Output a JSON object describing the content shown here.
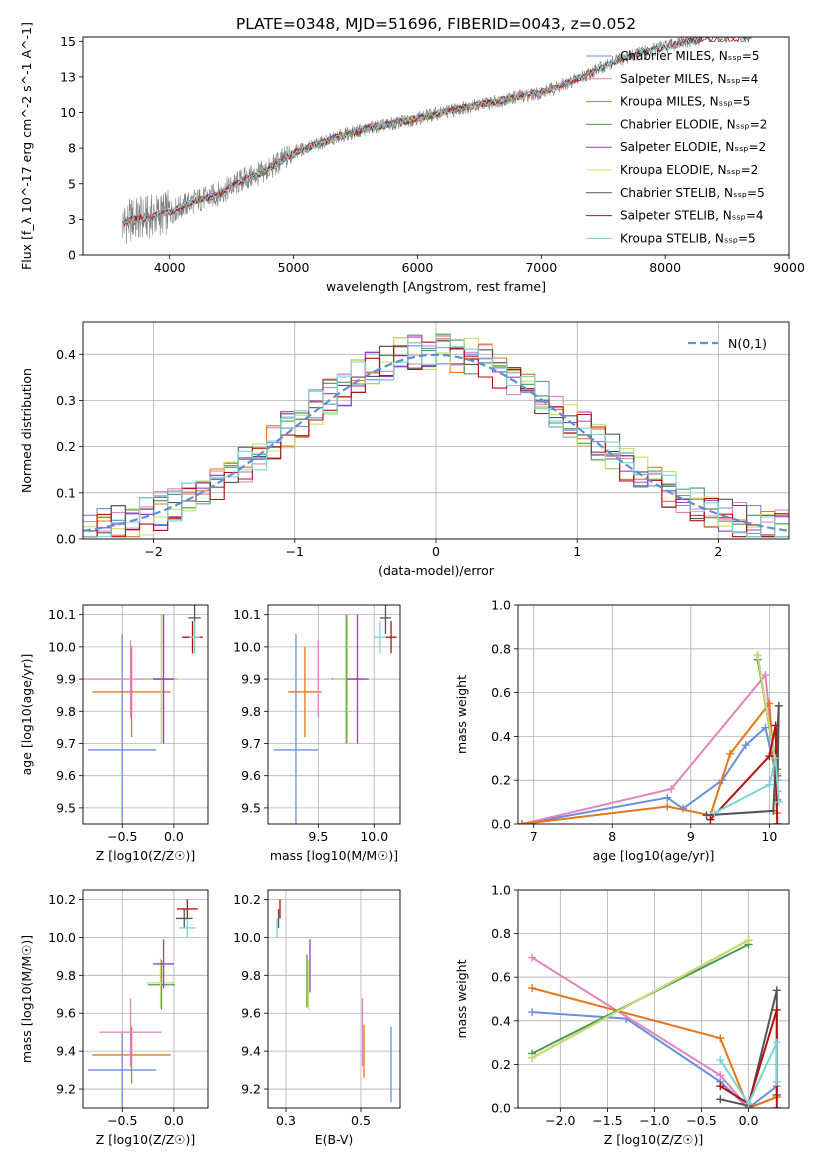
{
  "title": "PLATE=0348, MJD=51696, FIBERID=0043, z=0.052",
  "model_colors": {
    "Chabrier MILES": "#6a8fdc",
    "Salpeter MILES": "#e484bd",
    "Kroupa MILES": "#e3771b",
    "Chabrier ELODIE": "#4a9a55",
    "Salpeter ELODIE": "#9a3dcc",
    "Kroupa ELODIE": "#c8e06a",
    "Chabrier STELIB": "#555555",
    "Salpeter STELIB": "#b51111",
    "Kroupa STELIB": "#7ad6d6"
  },
  "chart_data": [
    {
      "id": "spectrum",
      "type": "line",
      "xlabel": "wavelength [Angstrom, rest frame]",
      "ylabel": "Flux [f_λ 10^-17 erg cm^-2 s^-1 A^-1]",
      "xlim": [
        3300,
        9000
      ],
      "ylim": [
        0,
        15.3
      ],
      "xticks": [
        4000,
        5000,
        6000,
        7000,
        8000,
        9000
      ],
      "yticks": [
        0.0,
        2.5,
        5.0,
        7.5,
        10.0,
        12.5,
        15.0
      ],
      "grid": false,
      "legend_position": "right",
      "data_color": "#808080",
      "data_points": [
        [
          3620,
          2.2
        ],
        [
          3700,
          2.5
        ],
        [
          3800,
          2.6
        ],
        [
          3900,
          2.8
        ],
        [
          4000,
          3.0
        ],
        [
          4100,
          3.4
        ],
        [
          4200,
          3.8
        ],
        [
          4300,
          4.0
        ],
        [
          4400,
          4.3
        ],
        [
          4500,
          4.8
        ],
        [
          4600,
          5.3
        ],
        [
          4700,
          5.6
        ],
        [
          4800,
          6.0
        ],
        [
          4900,
          6.6
        ],
        [
          5000,
          7.2
        ],
        [
          5200,
          7.8
        ],
        [
          5400,
          8.4
        ],
        [
          5600,
          8.9
        ],
        [
          5800,
          9.2
        ],
        [
          6000,
          9.6
        ],
        [
          6200,
          10.0
        ],
        [
          6400,
          10.4
        ],
        [
          6600,
          10.7
        ],
        [
          6800,
          11.1
        ],
        [
          7000,
          11.4
        ],
        [
          7200,
          12.0
        ],
        [
          7400,
          12.8
        ],
        [
          7600,
          13.6
        ],
        [
          7800,
          14.2
        ],
        [
          8000,
          14.6
        ],
        [
          8200,
          15.0
        ],
        [
          8300,
          15.2
        ]
      ],
      "series": [
        {
          "name": "Chabrier MILES, N_SSP=5",
          "color": "#6a8fdc",
          "x_range": [
            3620,
            7400
          ]
        },
        {
          "name": "Salpeter MILES, N_SSP=4",
          "color": "#e484bd",
          "x_range": [
            3620,
            7400
          ]
        },
        {
          "name": "Kroupa MILES, N_SSP=5",
          "color": "#e3771b",
          "x_range": [
            3620,
            7400
          ]
        },
        {
          "name": "Chabrier ELODIE, N_SSP=2",
          "color": "#4a9a55",
          "x_range": [
            4000,
            6800
          ]
        },
        {
          "name": "Salpeter ELODIE, N_SSP=2",
          "color": "#9a3dcc",
          "x_range": [
            4000,
            6800
          ]
        },
        {
          "name": "Kroupa ELODIE, N_SSP=2",
          "color": "#c8e06a",
          "x_range": [
            4000,
            6800
          ]
        },
        {
          "name": "Chabrier STELIB, N_SSP=5",
          "color": "#555555",
          "x_range": [
            3620,
            8700
          ]
        },
        {
          "name": "Salpeter STELIB, N_SSP=4",
          "color": "#b51111",
          "x_range": [
            3620,
            8700
          ]
        },
        {
          "name": "Kroupa STELIB, N_SSP=5",
          "color": "#7ad6d6",
          "x_range": [
            3620,
            8700
          ]
        }
      ]
    },
    {
      "id": "residuals",
      "type": "line",
      "xlabel": "(data-model)/error",
      "ylabel": "Normed distribution",
      "xlim": [
        -2.5,
        2.5
      ],
      "ylim": [
        0,
        0.47
      ],
      "xticks": [
        -2,
        -1,
        0,
        1,
        2
      ],
      "yticks": [
        0.0,
        0.1,
        0.2,
        0.3,
        0.4
      ],
      "grid": true,
      "legend_position": "top-right",
      "gaussian_label": "N(0,1)",
      "gaussian_color": "#5f8fd0",
      "bin_width": 0.1
    },
    {
      "id": "age_vs_Z",
      "type": "scatter",
      "xlabel": "Z [log10(Z/Z☉)]",
      "ylabel": "age [log10(age/yr)]",
      "xlim": [
        -0.88,
        0.33
      ],
      "ylim": [
        9.45,
        10.13
      ],
      "xticks": [
        -0.5,
        0.0
      ],
      "yticks": [
        9.5,
        9.6,
        9.7,
        9.8,
        9.9,
        10.0,
        10.1
      ],
      "grid": true,
      "points": [
        {
          "model": "Chabrier MILES",
          "x": -0.5,
          "xerr": 0.33,
          "y": 9.68,
          "yerr": 0.36
        },
        {
          "model": "Kroupa MILES",
          "x": -0.41,
          "xerr": 0.38,
          "y": 9.86,
          "yerr": 0.14
        },
        {
          "model": "Salpeter MILES",
          "x": -0.42,
          "xerr": 0.46,
          "y": 9.9,
          "yerr": 0.12
        },
        {
          "model": "Chabrier ELODIE",
          "x": -0.12,
          "xerr": 0.16,
          "y": 9.9,
          "yerr": 0.2
        },
        {
          "model": "Kroupa ELODIE",
          "x": -0.12,
          "xerr": 0.16,
          "y": 9.9,
          "yerr": 0.2
        },
        {
          "model": "Salpeter ELODIE",
          "x": -0.1,
          "xerr": 0.1,
          "y": 9.9,
          "yerr": 0.2
        },
        {
          "model": "Chabrier STELIB",
          "x": 0.2,
          "xerr": 0.06,
          "y": 10.09,
          "yerr": 0.05
        },
        {
          "model": "Salpeter STELIB",
          "x": 0.18,
          "xerr": 0.1,
          "y": 10.03,
          "yerr": 0.05
        },
        {
          "model": "Kroupa STELIB",
          "x": 0.2,
          "xerr": 0.05,
          "y": 10.03,
          "yerr": 0.05
        }
      ]
    },
    {
      "id": "age_vs_mass",
      "type": "scatter",
      "xlabel": "mass [log10(M/M☉)]",
      "ylabel": "",
      "xlim": [
        9.05,
        10.23
      ],
      "ylim": [
        9.45,
        10.13
      ],
      "xticks": [
        9.5,
        10.0
      ],
      "yticks": [
        9.5,
        9.6,
        9.7,
        9.8,
        9.9,
        10.0,
        10.1
      ],
      "grid": true,
      "points": [
        {
          "model": "Chabrier MILES",
          "x": 9.3,
          "xerr": 0.2,
          "y": 9.68,
          "yerr": 0.36
        },
        {
          "model": "Kroupa MILES",
          "x": 9.38,
          "xerr": 0.15,
          "y": 9.86,
          "yerr": 0.14
        },
        {
          "model": "Salpeter MILES",
          "x": 9.5,
          "xerr": 0.01,
          "y": 9.9,
          "yerr": 0.12
        },
        {
          "model": "Chabrier ELODIE",
          "x": 9.75,
          "xerr": 0.13,
          "y": 9.9,
          "yerr": 0.2
        },
        {
          "model": "Kroupa ELODIE",
          "x": 9.76,
          "xerr": 0.13,
          "y": 9.9,
          "yerr": 0.2
        },
        {
          "model": "Salpeter ELODIE",
          "x": 9.85,
          "xerr": 0.1,
          "y": 9.9,
          "yerr": 0.2
        },
        {
          "model": "Chabrier STELIB",
          "x": 10.1,
          "xerr": 0.05,
          "y": 10.09,
          "yerr": 0.05
        },
        {
          "model": "Salpeter STELIB",
          "x": 10.15,
          "xerr": 0.05,
          "y": 10.03,
          "yerr": 0.05
        },
        {
          "model": "Kroupa STELIB",
          "x": 10.05,
          "xerr": 0.05,
          "y": 10.03,
          "yerr": 0.05
        }
      ]
    },
    {
      "id": "weight_vs_age",
      "type": "line",
      "xlabel": "age [log10(age/yr)]",
      "ylabel": "mass weight",
      "xlim": [
        6.8,
        10.25
      ],
      "ylim": [
        0,
        1.0
      ],
      "xticks": [
        7,
        8,
        9,
        10
      ],
      "yticks": [
        0.0,
        0.2,
        0.4,
        0.6,
        0.8,
        1.0
      ],
      "grid": true,
      "series": [
        {
          "model": "Chabrier MILES",
          "points": [
            [
              6.85,
              0.0
            ],
            [
              8.7,
              0.12
            ],
            [
              8.9,
              0.07
            ],
            [
              9.4,
              0.2
            ],
            [
              9.7,
              0.36
            ],
            [
              9.95,
              0.44
            ],
            [
              10.1,
              0.2
            ]
          ]
        },
        {
          "model": "Salpeter MILES",
          "points": [
            [
              6.85,
              0.0
            ],
            [
              8.75,
              0.16
            ],
            [
              9.95,
              0.68
            ],
            [
              10.1,
              0.15
            ]
          ]
        },
        {
          "model": "Kroupa MILES",
          "points": [
            [
              6.85,
              0.0
            ],
            [
              8.7,
              0.08
            ],
            [
              9.25,
              0.04
            ],
            [
              9.5,
              0.32
            ],
            [
              10.0,
              0.55
            ],
            [
              10.1,
              0.05
            ]
          ]
        },
        {
          "model": "Chabrier ELODIE",
          "points": [
            [
              9.85,
              0.75
            ],
            [
              10.1,
              0.25
            ]
          ]
        },
        {
          "model": "Salpeter ELODIE",
          "points": [
            [
              9.85,
              0.77
            ],
            [
              10.1,
              0.22
            ]
          ]
        },
        {
          "model": "Kroupa ELODIE",
          "points": [
            [
              9.85,
              0.77
            ],
            [
              10.1,
              0.23
            ]
          ]
        },
        {
          "model": "Chabrier STELIB",
          "points": [
            [
              9.2,
              0.04
            ],
            [
              10.05,
              0.06
            ],
            [
              10.12,
              0.54
            ],
            [
              10.1,
              0.11
            ]
          ]
        },
        {
          "model": "Salpeter STELIB",
          "points": [
            [
              9.25,
              0.02
            ],
            [
              10.0,
              0.31
            ],
            [
              10.08,
              0.45
            ],
            [
              10.1,
              0.0
            ]
          ]
        },
        {
          "model": "Kroupa STELIB",
          "points": [
            [
              9.3,
              0.05
            ],
            [
              10.0,
              0.18
            ],
            [
              10.08,
              0.3
            ],
            [
              10.12,
              0.1
            ]
          ]
        }
      ]
    },
    {
      "id": "mass_vs_Z",
      "type": "scatter",
      "xlabel": "Z [log10(Z/Z☉)]",
      "ylabel": "mass [log10(M/M☉)]",
      "xlim": [
        -0.88,
        0.33
      ],
      "ylim": [
        9.1,
        10.25
      ],
      "xticks": [
        -0.5,
        0.0
      ],
      "yticks": [
        9.2,
        9.4,
        9.6,
        9.8,
        10.0,
        10.2
      ],
      "grid": true,
      "points": [
        {
          "model": "Chabrier MILES",
          "x": -0.5,
          "xerr": 0.33,
          "y": 9.3,
          "yerr": 0.2
        },
        {
          "model": "Kroupa MILES",
          "x": -0.41,
          "xerr": 0.38,
          "y": 9.38,
          "yerr": 0.15
        },
        {
          "model": "Salpeter MILES",
          "x": -0.42,
          "xerr": 0.3,
          "y": 9.5,
          "yerr": 0.18
        },
        {
          "model": "Chabrier ELODIE",
          "x": -0.12,
          "xerr": 0.13,
          "y": 9.75,
          "yerr": 0.13
        },
        {
          "model": "Kroupa ELODIE",
          "x": -0.13,
          "xerr": 0.13,
          "y": 9.76,
          "yerr": 0.13
        },
        {
          "model": "Salpeter ELODIE",
          "x": -0.1,
          "xerr": 0.1,
          "y": 9.86,
          "yerr": 0.13
        },
        {
          "model": "Chabrier STELIB",
          "x": 0.1,
          "xerr": 0.08,
          "y": 10.1,
          "yerr": 0.05
        },
        {
          "model": "Salpeter STELIB",
          "x": 0.13,
          "xerr": 0.1,
          "y": 10.15,
          "yerr": 0.05
        },
        {
          "model": "Kroupa STELIB",
          "x": 0.13,
          "xerr": 0.08,
          "y": 10.05,
          "yerr": 0.05
        }
      ]
    },
    {
      "id": "mass_vs_ebv",
      "type": "scatter",
      "xlabel": "E(B-V)",
      "ylabel": "",
      "xlim": [
        0.19,
        0.63
      ],
      "ylim": [
        9.1,
        10.25
      ],
      "xticks": [
        0.25,
        0.5
      ],
      "yticks": [
        9.2,
        9.4,
        9.6,
        9.8,
        10.0,
        10.2
      ],
      "grid": true,
      "points": [
        {
          "model": "Chabrier MILES",
          "x": 0.6,
          "xerr": 0.0,
          "y": 9.33,
          "yerr": 0.2
        },
        {
          "model": "Salpeter MILES",
          "x": 0.505,
          "xerr": 0.0,
          "y": 9.5,
          "yerr": 0.18
        },
        {
          "model": "Kroupa MILES",
          "x": 0.51,
          "xerr": 0.0,
          "y": 9.4,
          "yerr": 0.14
        },
        {
          "model": "Chabrier ELODIE",
          "x": 0.32,
          "xerr": 0.0,
          "y": 9.77,
          "yerr": 0.14
        },
        {
          "model": "Salpeter ELODIE",
          "x": 0.33,
          "xerr": 0.0,
          "y": 9.85,
          "yerr": 0.14
        },
        {
          "model": "Kroupa ELODIE",
          "x": 0.325,
          "xerr": 0.0,
          "y": 9.75,
          "yerr": 0.13
        },
        {
          "model": "Chabrier STELIB",
          "x": 0.225,
          "xerr": 0.0,
          "y": 10.1,
          "yerr": 0.05
        },
        {
          "model": "Salpeter STELIB",
          "x": 0.23,
          "xerr": 0.0,
          "y": 10.15,
          "yerr": 0.05
        },
        {
          "model": "Kroupa STELIB",
          "x": 0.22,
          "xerr": 0.0,
          "y": 10.05,
          "yerr": 0.05
        }
      ]
    },
    {
      "id": "weight_vs_Z",
      "type": "line",
      "xlabel": "Z [log10(Z/Z☉)]",
      "ylabel": "mass weight",
      "xlim": [
        -2.45,
        0.43
      ],
      "ylim": [
        0,
        1.0
      ],
      "xticks": [
        -2.0,
        -1.5,
        -1.0,
        -0.5,
        0.0
      ],
      "yticks": [
        0.0,
        0.2,
        0.4,
        0.6,
        0.8,
        1.0
      ],
      "grid": true,
      "series": [
        {
          "model": "Chabrier MILES",
          "points": [
            [
              -2.3,
              0.44
            ],
            [
              -1.3,
              0.41
            ],
            [
              -0.3,
              0.12
            ],
            [
              0.0,
              0.0
            ],
            [
              0.3,
              0.1
            ]
          ]
        },
        {
          "model": "Salpeter MILES",
          "points": [
            [
              -2.3,
              0.69
            ],
            [
              -0.3,
              0.15
            ],
            [
              0.0,
              0.0
            ],
            [
              0.3,
              0.05
            ]
          ]
        },
        {
          "model": "Kroupa MILES",
          "points": [
            [
              -2.3,
              0.55
            ],
            [
              -0.3,
              0.32
            ],
            [
              0.0,
              0.0
            ],
            [
              0.3,
              0.05
            ]
          ]
        },
        {
          "model": "Chabrier ELODIE",
          "points": [
            [
              -2.3,
              0.25
            ],
            [
              0.0,
              0.75
            ]
          ]
        },
        {
          "model": "Salpeter ELODIE",
          "points": [
            [
              -2.3,
              0.23
            ],
            [
              0.0,
              0.77
            ]
          ]
        },
        {
          "model": "Kroupa ELODIE",
          "points": [
            [
              -2.3,
              0.23
            ],
            [
              0.0,
              0.77
            ]
          ]
        },
        {
          "model": "Chabrier STELIB",
          "points": [
            [
              -0.3,
              0.04
            ],
            [
              0.0,
              0.01
            ],
            [
              0.3,
              0.54
            ],
            [
              0.3,
              0.06
            ]
          ]
        },
        {
          "model": "Salpeter STELIB",
          "points": [
            [
              -0.3,
              0.1
            ],
            [
              0.0,
              0.02
            ],
            [
              0.3,
              0.45
            ],
            [
              0.3,
              0.0
            ]
          ]
        },
        {
          "model": "Kroupa STELIB",
          "points": [
            [
              -0.3,
              0.22
            ],
            [
              0.0,
              0.02
            ],
            [
              0.3,
              0.3
            ],
            [
              0.3,
              0.12
            ]
          ]
        }
      ]
    }
  ]
}
